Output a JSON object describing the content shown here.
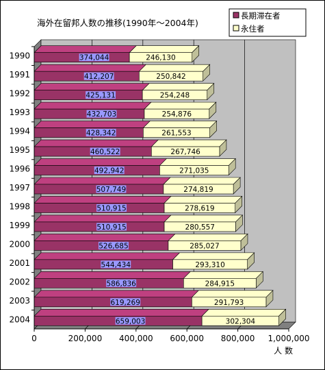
{
  "chart_data": {
    "type": "bar",
    "orientation": "horizontal",
    "stacked": true,
    "style": "3d",
    "title": "海外在留邦人数の推移(1990年～2004年)",
    "xlabel": "人 数",
    "ylabel": "",
    "xlim": [
      0,
      1000000
    ],
    "x_ticks": [
      "0",
      "200,000",
      "400,000",
      "600,000",
      "800,000",
      "1,000,000"
    ],
    "categories": [
      "1990",
      "1991",
      "1992",
      "1993",
      "1994",
      "1995",
      "1996",
      "1997",
      "1998",
      "1999",
      "2000",
      "2001",
      "2002",
      "2003",
      "2004"
    ],
    "series": [
      {
        "name": "長期滞在者",
        "color": "#993366",
        "values": [
          374044,
          412207,
          425131,
          432703,
          428342,
          460522,
          492942,
          507749,
          510915,
          510915,
          526685,
          544434,
          586836,
          619269,
          659003
        ],
        "labels": [
          "374,044",
          "412,207",
          "425,131",
          "432,703",
          "428,342",
          "460,522",
          "492,942",
          "507,749",
          "510,915",
          "510,915",
          "526,685",
          "544,434",
          "586,836",
          "619,269",
          "659,003"
        ]
      },
      {
        "name": "永住者",
        "color": "#ffffcc",
        "values": [
          246130,
          250842,
          254248,
          254876,
          261553,
          267746,
          271035,
          274819,
          278619,
          280557,
          285027,
          293310,
          284915,
          291793,
          302304
        ],
        "labels": [
          "246,130",
          "250,842",
          "254,248",
          "254,876",
          "261,553",
          "267,746",
          "271,035",
          "274,819",
          "278,619",
          "280,557",
          "285,027",
          "293,310",
          "284,915",
          "291,793",
          "302,304"
        ]
      }
    ],
    "grid": true,
    "legend_position": "top-right",
    "plot_background": "#c0c0c0"
  }
}
